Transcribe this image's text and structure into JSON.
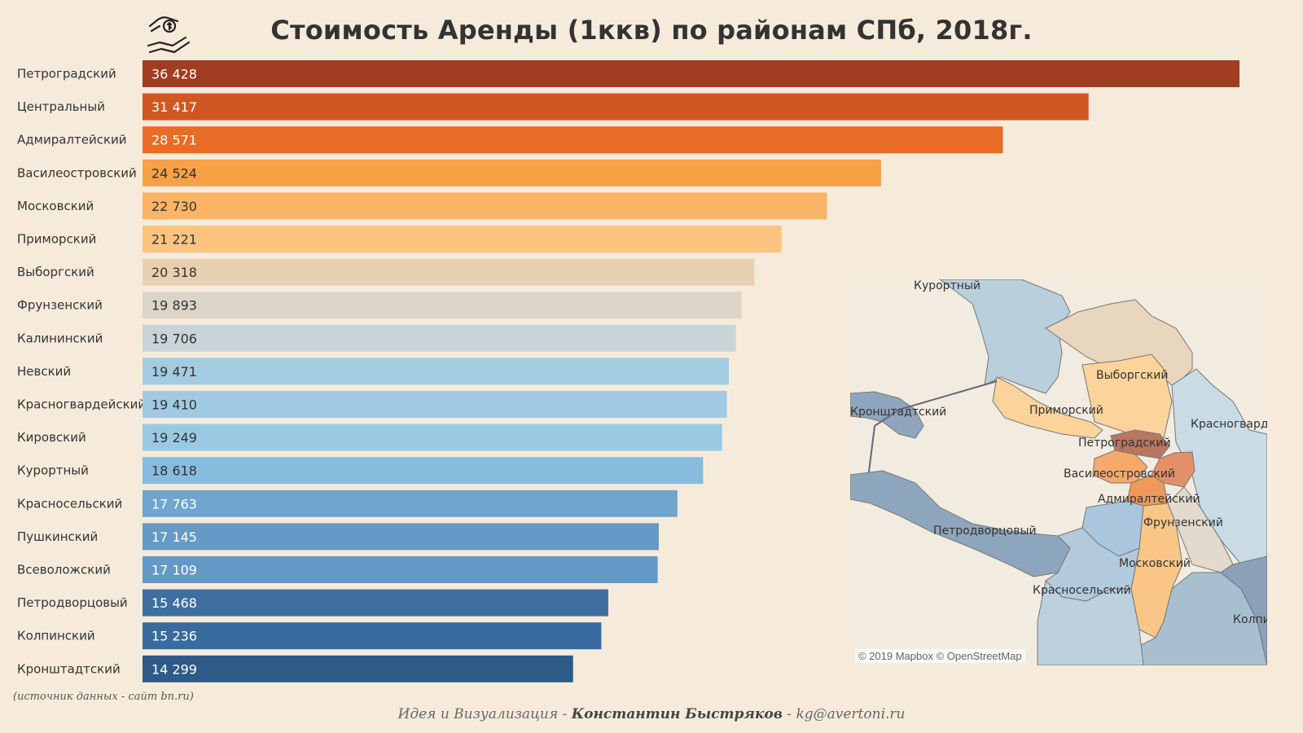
{
  "title": "Стоимость Аренды  (1ккв) по районам СПб, 2018г.",
  "logo_icon": "hand-money-icon",
  "chart_data": {
    "type": "bar",
    "orientation": "horizontal",
    "categories": [
      "Петроградский",
      "Центральный",
      "Адмиралтейский",
      "Василеостровский",
      "Московский",
      "Приморский",
      "Выборгский",
      "Фрунзенский",
      "Калининский",
      "Невский",
      "Красногвардейский",
      "Кировский",
      "Курортный",
      "Красносельский",
      "Пушкинский",
      "Всеволожский",
      "Петродворцовый",
      "Колпинский",
      "Кронштадтский"
    ],
    "values": [
      36428,
      31417,
      28571,
      24524,
      22730,
      21221,
      20318,
      19893,
      19706,
      19471,
      19410,
      19249,
      18618,
      17763,
      17145,
      17109,
      15468,
      15236,
      14299
    ],
    "value_labels": [
      "36 428",
      "31 417",
      "28 571",
      "24 524",
      "22 730",
      "21 221",
      "20 318",
      "19 893",
      "19 706",
      "19 471",
      "19 410",
      "19 249",
      "18 618",
      "17 763",
      "17 145",
      "17 109",
      "15 468",
      "15 236",
      "14 299"
    ],
    "colors": [
      "#a03c22",
      "#d05722",
      "#e86c25",
      "#f7a046",
      "#fbb466",
      "#fdc47f",
      "#e7d0b0",
      "#dcd4c6",
      "#c8d4d8",
      "#a3cbe2",
      "#a0cae2",
      "#9acae3",
      "#88bcde",
      "#6fa5cf",
      "#6699c6",
      "#6399c6",
      "#3f6fa0",
      "#3a6b9e",
      "#2e5a88"
    ],
    "label_colors": [
      "#ffffff",
      "#ffffff",
      "#ffffff",
      "#333333",
      "#333333",
      "#333333",
      "#333333",
      "#333333",
      "#333333",
      "#333333",
      "#333333",
      "#333333",
      "#333333",
      "#ffffff",
      "#ffffff",
      "#ffffff",
      "#ffffff",
      "#ffffff",
      "#ffffff"
    ],
    "xlim": [
      0,
      36428
    ]
  },
  "map": {
    "labels": [
      "Курортный",
      "Выборгский",
      "Приморский",
      "Кронштадтский",
      "Красногварде",
      "Петроградский",
      "Василеостровский",
      "Адмиралтейский",
      "Фрунзенский",
      "Петродворцовый",
      "Московский",
      "Красносельский",
      "Колпи"
    ],
    "attribution": "© 2019 Mapbox © OpenStreetMap"
  },
  "source_note": "(источник данных - сайт bn.ru)",
  "credits": {
    "prefix": "Идея и Визуализация  - ",
    "author": "Константин Быстряков",
    "suffix": "  -  kg@avertoni.ru"
  }
}
